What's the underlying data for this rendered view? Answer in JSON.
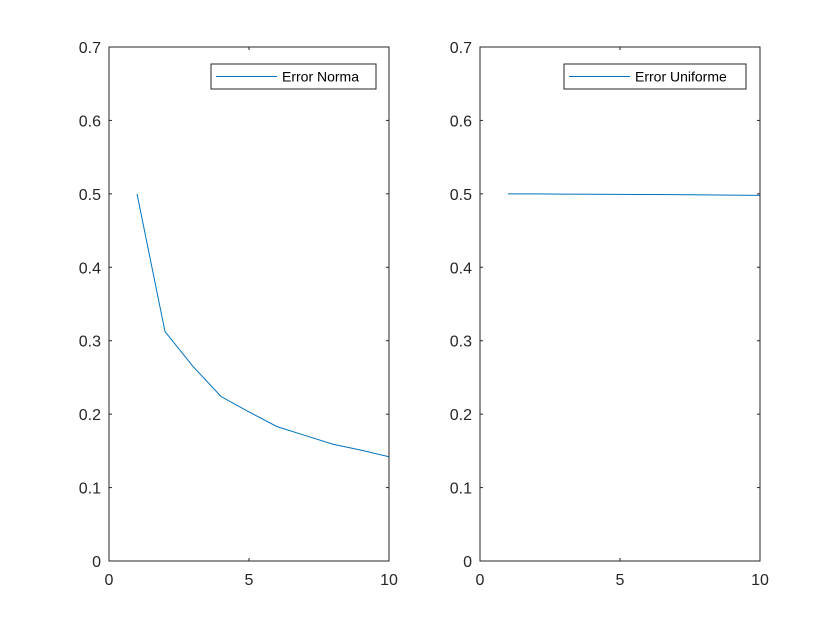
{
  "chart_data": [
    {
      "type": "line",
      "xlim": [
        0,
        10
      ],
      "ylim": [
        0,
        0.7
      ],
      "x_ticks": [
        "0",
        "5",
        "10"
      ],
      "y_ticks": [
        "0",
        "0.1",
        "0.2",
        "0.3",
        "0.4",
        "0.5",
        "0.6",
        "0.7"
      ],
      "grid": false,
      "legend_position": "top-right",
      "series": [
        {
          "name": "Error Norma",
          "color": "#0072BD",
          "x": [
            1,
            2,
            3,
            4,
            5,
            6,
            7,
            8,
            9,
            10
          ],
          "y": [
            0.5,
            0.3125,
            0.265,
            0.224,
            0.203,
            0.183,
            0.171,
            0.159,
            0.151,
            0.142
          ]
        }
      ]
    },
    {
      "type": "line",
      "xlim": [
        0,
        10
      ],
      "ylim": [
        0,
        0.7
      ],
      "x_ticks": [
        "0",
        "5",
        "10"
      ],
      "y_ticks": [
        "0",
        "0.1",
        "0.2",
        "0.3",
        "0.4",
        "0.5",
        "0.6",
        "0.7"
      ],
      "grid": false,
      "legend_position": "top-right",
      "series": [
        {
          "name": "Error Uniforme",
          "color": "#0072BD",
          "x": [
            1,
            2,
            3,
            4,
            5,
            6,
            7,
            8,
            9,
            10
          ],
          "y": [
            0.5,
            0.4999,
            0.4997,
            0.4995,
            0.4993,
            0.4991,
            0.4989,
            0.4986,
            0.4983,
            0.498
          ]
        }
      ]
    }
  ]
}
